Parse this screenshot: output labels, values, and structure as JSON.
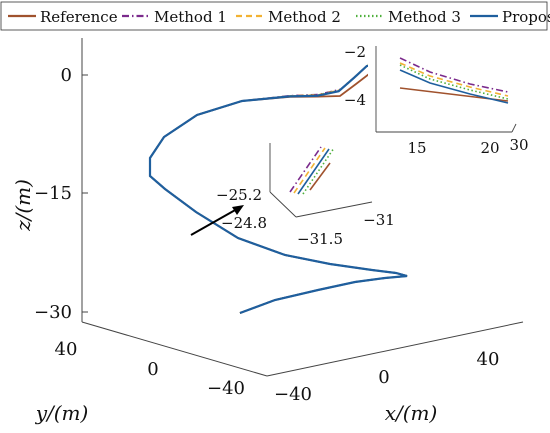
{
  "chart_data": {
    "type": "line",
    "projection": "3d",
    "legend": {
      "placement": "top",
      "entries": [
        {
          "name": "Reference",
          "color": "#a0522d",
          "dash": "solid"
        },
        {
          "name": "Method 1",
          "color": "#7b2a8c",
          "dash": "dash-dot"
        },
        {
          "name": "Method 2",
          "color": "#f2b233",
          "dash": "dashed"
        },
        {
          "name": "Method 3",
          "color": "#4daf3a",
          "dash": "dotted"
        },
        {
          "name": "Proposed",
          "color": "#1f5f9e",
          "dash": "solid"
        }
      ]
    },
    "axes": {
      "x": {
        "label": "x/(m)",
        "ticks": [
          "−40",
          "0",
          "40"
        ]
      },
      "y": {
        "label": "y/(m)",
        "ticks": [
          "40",
          "0",
          "−40"
        ]
      },
      "z": {
        "label": "z/(m)",
        "ticks": [
          "0",
          "−15",
          "−30"
        ]
      }
    },
    "inset_top_right": {
      "x_ticks": [
        "15",
        "20"
      ],
      "y_ticks": [
        "30"
      ],
      "z_ticks": [
        "−2",
        "−4"
      ]
    },
    "inset_middle": {
      "x_ticks": [
        "−31.5",
        "−31"
      ],
      "y_ticks": [
        "−24.8"
      ],
      "z_ticks": [
        "−25.2"
      ]
    }
  }
}
